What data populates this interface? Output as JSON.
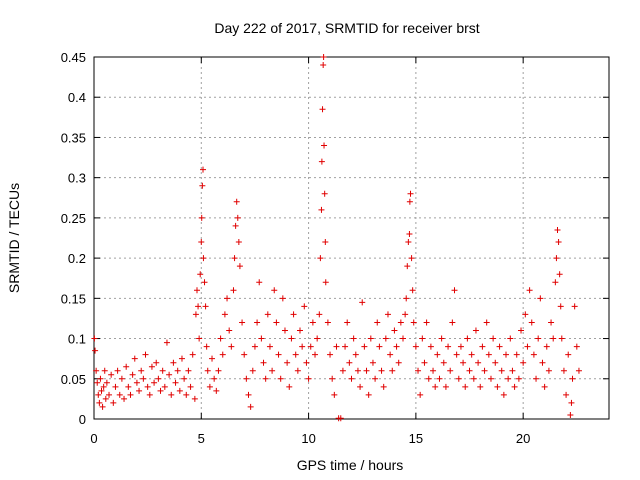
{
  "chart_data": {
    "type": "scatter",
    "title": "Day 222 of 2017, SRMTID for receiver brst",
    "xlabel": "GPS time / hours",
    "ylabel": "SRMTID / TECUs",
    "xlim": [
      0,
      24
    ],
    "ylim": [
      0,
      0.45
    ],
    "xticks": [
      0,
      5,
      10,
      15,
      20
    ],
    "yticks": [
      0,
      0.05,
      0.1,
      0.15,
      0.2,
      0.25,
      0.3,
      0.35,
      0.4,
      0.45
    ],
    "xtick_labels": [
      "0",
      "5",
      "10",
      "15",
      "20"
    ],
    "ytick_labels": [
      "0",
      "0.05",
      "0.1",
      "0.15",
      "0.2",
      "0.25",
      "0.3",
      "0.35",
      "0.4",
      "0.45"
    ],
    "grid": true,
    "marker": "+",
    "color": "#e00000",
    "series": [
      {
        "name": "SRMTID",
        "points": [
          [
            0.02,
            0.1
          ],
          [
            0.05,
            0.085
          ],
          [
            0.1,
            0.06
          ],
          [
            0.15,
            0.045
          ],
          [
            0.2,
            0.03
          ],
          [
            0.25,
            0.02
          ],
          [
            0.3,
            0.05
          ],
          [
            0.35,
            0.035
          ],
          [
            0.4,
            0.015
          ],
          [
            0.45,
            0.04
          ],
          [
            0.5,
            0.06
          ],
          [
            0.55,
            0.025
          ],
          [
            0.6,
            0.045
          ],
          [
            0.7,
            0.03
          ],
          [
            0.8,
            0.055
          ],
          [
            0.9,
            0.02
          ],
          [
            1.0,
            0.04
          ],
          [
            1.1,
            0.06
          ],
          [
            1.2,
            0.03
          ],
          [
            1.3,
            0.05
          ],
          [
            1.4,
            0.025
          ],
          [
            1.5,
            0.065
          ],
          [
            1.6,
            0.04
          ],
          [
            1.7,
            0.03
          ],
          [
            1.8,
            0.055
          ],
          [
            1.9,
            0.075
          ],
          [
            2.0,
            0.045
          ],
          [
            2.1,
            0.035
          ],
          [
            2.2,
            0.06
          ],
          [
            2.3,
            0.05
          ],
          [
            2.4,
            0.08
          ],
          [
            2.5,
            0.04
          ],
          [
            2.6,
            0.03
          ],
          [
            2.7,
            0.065
          ],
          [
            2.8,
            0.045
          ],
          [
            2.9,
            0.07
          ],
          [
            3.0,
            0.05
          ],
          [
            3.1,
            0.035
          ],
          [
            3.2,
            0.06
          ],
          [
            3.3,
            0.04
          ],
          [
            3.4,
            0.095
          ],
          [
            3.5,
            0.055
          ],
          [
            3.6,
            0.03
          ],
          [
            3.7,
            0.07
          ],
          [
            3.8,
            0.045
          ],
          [
            3.9,
            0.06
          ],
          [
            4.0,
            0.035
          ],
          [
            4.1,
            0.075
          ],
          [
            4.2,
            0.05
          ],
          [
            4.3,
            0.03
          ],
          [
            4.4,
            0.06
          ],
          [
            4.5,
            0.04
          ],
          [
            4.6,
            0.08
          ],
          [
            4.7,
            0.025
          ],
          [
            4.75,
            0.13
          ],
          [
            4.8,
            0.16
          ],
          [
            4.85,
            0.14
          ],
          [
            4.9,
            0.1
          ],
          [
            4.95,
            0.18
          ],
          [
            5.0,
            0.22
          ],
          [
            5.02,
            0.25
          ],
          [
            5.05,
            0.29
          ],
          [
            5.08,
            0.31
          ],
          [
            5.1,
            0.2
          ],
          [
            5.15,
            0.17
          ],
          [
            5.2,
            0.14
          ],
          [
            5.25,
            0.09
          ],
          [
            5.3,
            0.06
          ],
          [
            5.4,
            0.04
          ],
          [
            5.5,
            0.075
          ],
          [
            5.6,
            0.05
          ],
          [
            5.7,
            0.035
          ],
          [
            5.8,
            0.06
          ],
          [
            5.9,
            0.1
          ],
          [
            6.0,
            0.08
          ],
          [
            6.1,
            0.13
          ],
          [
            6.2,
            0.15
          ],
          [
            6.3,
            0.11
          ],
          [
            6.4,
            0.09
          ],
          [
            6.5,
            0.16
          ],
          [
            6.55,
            0.2
          ],
          [
            6.6,
            0.24
          ],
          [
            6.65,
            0.27
          ],
          [
            6.7,
            0.25
          ],
          [
            6.75,
            0.22
          ],
          [
            6.8,
            0.19
          ],
          [
            6.9,
            0.12
          ],
          [
            7.0,
            0.08
          ],
          [
            7.1,
            0.05
          ],
          [
            7.2,
            0.03
          ],
          [
            7.3,
            0.015
          ],
          [
            7.4,
            0.06
          ],
          [
            7.5,
            0.09
          ],
          [
            7.6,
            0.12
          ],
          [
            7.7,
            0.17
          ],
          [
            7.8,
            0.1
          ],
          [
            7.9,
            0.07
          ],
          [
            8.0,
            0.05
          ],
          [
            8.1,
            0.13
          ],
          [
            8.2,
            0.09
          ],
          [
            8.3,
            0.06
          ],
          [
            8.4,
            0.16
          ],
          [
            8.5,
            0.12
          ],
          [
            8.6,
            0.08
          ],
          [
            8.7,
            0.05
          ],
          [
            8.8,
            0.15
          ],
          [
            8.9,
            0.11
          ],
          [
            9.0,
            0.07
          ],
          [
            9.1,
            0.04
          ],
          [
            9.2,
            0.1
          ],
          [
            9.3,
            0.13
          ],
          [
            9.4,
            0.08
          ],
          [
            9.5,
            0.06
          ],
          [
            9.6,
            0.11
          ],
          [
            9.7,
            0.09
          ],
          [
            9.8,
            0.14
          ],
          [
            9.9,
            0.07
          ],
          [
            10.0,
            0.05
          ],
          [
            10.1,
            0.09
          ],
          [
            10.2,
            0.12
          ],
          [
            10.3,
            0.08
          ],
          [
            10.4,
            0.1
          ],
          [
            10.5,
            0.13
          ],
          [
            10.55,
            0.2
          ],
          [
            10.6,
            0.26
          ],
          [
            10.62,
            0.32
          ],
          [
            10.65,
            0.385
          ],
          [
            10.68,
            0.44
          ],
          [
            10.7,
            0.45
          ],
          [
            10.72,
            0.34
          ],
          [
            10.75,
            0.28
          ],
          [
            10.78,
            0.22
          ],
          [
            10.8,
            0.17
          ],
          [
            10.9,
            0.12
          ],
          [
            11.0,
            0.08
          ],
          [
            11.1,
            0.05
          ],
          [
            11.2,
            0.03
          ],
          [
            11.3,
            0.09
          ],
          [
            11.4,
            0.001
          ],
          [
            11.5,
            0.001
          ],
          [
            11.6,
            0.06
          ],
          [
            11.7,
            0.09
          ],
          [
            11.8,
            0.12
          ],
          [
            11.9,
            0.07
          ],
          [
            12.0,
            0.05
          ],
          [
            12.1,
            0.1
          ],
          [
            12.2,
            0.08
          ],
          [
            12.3,
            0.06
          ],
          [
            12.4,
            0.04
          ],
          [
            12.5,
            0.145
          ],
          [
            12.6,
            0.09
          ],
          [
            12.7,
            0.06
          ],
          [
            12.8,
            0.03
          ],
          [
            12.9,
            0.1
          ],
          [
            13.0,
            0.07
          ],
          [
            13.1,
            0.05
          ],
          [
            13.2,
            0.12
          ],
          [
            13.3,
            0.09
          ],
          [
            13.4,
            0.06
          ],
          [
            13.5,
            0.04
          ],
          [
            13.6,
            0.1
          ],
          [
            13.7,
            0.13
          ],
          [
            13.8,
            0.08
          ],
          [
            13.9,
            0.06
          ],
          [
            14.0,
            0.11
          ],
          [
            14.1,
            0.09
          ],
          [
            14.2,
            0.07
          ],
          [
            14.3,
            0.12
          ],
          [
            14.4,
            0.1
          ],
          [
            14.5,
            0.13
          ],
          [
            14.55,
            0.15
          ],
          [
            14.6,
            0.19
          ],
          [
            14.65,
            0.22
          ],
          [
            14.7,
            0.23
          ],
          [
            14.72,
            0.27
          ],
          [
            14.75,
            0.28
          ],
          [
            14.8,
            0.2
          ],
          [
            14.85,
            0.16
          ],
          [
            14.9,
            0.12
          ],
          [
            15.0,
            0.09
          ],
          [
            15.1,
            0.06
          ],
          [
            15.2,
            0.03
          ],
          [
            15.3,
            0.1
          ],
          [
            15.4,
            0.07
          ],
          [
            15.5,
            0.12
          ],
          [
            15.6,
            0.05
          ],
          [
            15.7,
            0.09
          ],
          [
            15.8,
            0.06
          ],
          [
            15.9,
            0.04
          ],
          [
            16.0,
            0.08
          ],
          [
            16.1,
            0.05
          ],
          [
            16.2,
            0.1
          ],
          [
            16.3,
            0.07
          ],
          [
            16.4,
            0.04
          ],
          [
            16.5,
            0.09
          ],
          [
            16.6,
            0.06
          ],
          [
            16.7,
            0.12
          ],
          [
            16.8,
            0.16
          ],
          [
            16.9,
            0.08
          ],
          [
            17.0,
            0.05
          ],
          [
            17.1,
            0.09
          ],
          [
            17.2,
            0.07
          ],
          [
            17.3,
            0.04
          ],
          [
            17.4,
            0.1
          ],
          [
            17.5,
            0.06
          ],
          [
            17.6,
            0.08
          ],
          [
            17.7,
            0.05
          ],
          [
            17.8,
            0.11
          ],
          [
            17.9,
            0.07
          ],
          [
            18.0,
            0.04
          ],
          [
            18.1,
            0.09
          ],
          [
            18.2,
            0.06
          ],
          [
            18.3,
            0.12
          ],
          [
            18.4,
            0.08
          ],
          [
            18.5,
            0.05
          ],
          [
            18.6,
            0.1
          ],
          [
            18.7,
            0.07
          ],
          [
            18.8,
            0.04
          ],
          [
            18.9,
            0.09
          ],
          [
            19.0,
            0.06
          ],
          [
            19.1,
            0.03
          ],
          [
            19.2,
            0.08
          ],
          [
            19.3,
            0.05
          ],
          [
            19.4,
            0.1
          ],
          [
            19.5,
            0.06
          ],
          [
            19.6,
            0.04
          ],
          [
            19.7,
            0.08
          ],
          [
            19.8,
            0.05
          ],
          [
            19.9,
            0.11
          ],
          [
            20.0,
            0.07
          ],
          [
            20.1,
            0.13
          ],
          [
            20.2,
            0.09
          ],
          [
            20.3,
            0.16
          ],
          [
            20.4,
            0.12
          ],
          [
            20.5,
            0.08
          ],
          [
            20.6,
            0.05
          ],
          [
            20.7,
            0.1
          ],
          [
            20.8,
            0.15
          ],
          [
            20.9,
            0.07
          ],
          [
            21.0,
            0.04
          ],
          [
            21.1,
            0.09
          ],
          [
            21.2,
            0.06
          ],
          [
            21.3,
            0.12
          ],
          [
            21.4,
            0.1
          ],
          [
            21.5,
            0.17
          ],
          [
            21.55,
            0.2
          ],
          [
            21.6,
            0.235
          ],
          [
            21.65,
            0.22
          ],
          [
            21.7,
            0.18
          ],
          [
            21.75,
            0.14
          ],
          [
            21.8,
            0.1
          ],
          [
            21.9,
            0.06
          ],
          [
            22.0,
            0.03
          ],
          [
            22.1,
            0.08
          ],
          [
            22.2,
            0.005
          ],
          [
            22.25,
            0.02
          ],
          [
            22.3,
            0.05
          ],
          [
            22.4,
            0.14
          ],
          [
            22.5,
            0.09
          ],
          [
            22.6,
            0.06
          ]
        ]
      }
    ]
  }
}
